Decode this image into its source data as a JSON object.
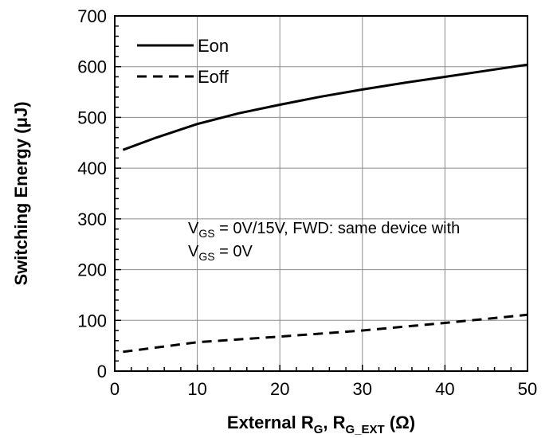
{
  "chart_data": {
    "type": "line",
    "xlabel": {
      "prefix": "External R",
      "sub1": "G",
      "mid": ", R",
      "sub2": "G_EXT",
      "suffix": " (Ω)"
    },
    "ylabel": "Switching Energy (μJ)",
    "xlim": [
      0,
      50
    ],
    "ylim": [
      0,
      700
    ],
    "xticks": [
      0,
      10,
      20,
      30,
      40,
      50
    ],
    "yticks": [
      0,
      100,
      200,
      300,
      400,
      500,
      600,
      700
    ],
    "grid": true,
    "legend_position": "top-left",
    "series": [
      {
        "name": "Eon",
        "style": "solid",
        "color": "#000000",
        "x": [
          1,
          5,
          10,
          15,
          20,
          25,
          30,
          35,
          40,
          45,
          50
        ],
        "y": [
          436,
          460,
          487,
          508,
          525,
          541,
          555,
          568,
          580,
          592,
          604
        ]
      },
      {
        "name": "Eoff",
        "style": "dashed",
        "color": "#000000",
        "x": [
          1,
          10,
          20,
          30,
          40,
          50
        ],
        "y": [
          38,
          57,
          68,
          80,
          95,
          111
        ]
      }
    ],
    "annotation": {
      "line1_prefix": "V",
      "line1_sub": "GS",
      "line1_suffix": " = 0V/15V, FWD: same device with",
      "line2_prefix": "V",
      "line2_sub": "GS",
      "line2_suffix": " = 0V"
    }
  }
}
